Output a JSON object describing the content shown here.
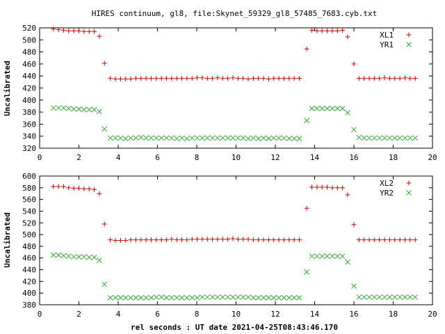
{
  "title": "HIRES continuum, gl8, file:Skynet_59329_gl8_57485_7683.cyb.txt",
  "xlabel": "rel seconds : UT date 2021-04-25T08:43:46.170",
  "colors": {
    "xl": "#cc0000",
    "yr": "#33aa33",
    "frame": "#000000"
  },
  "chart_data": [
    {
      "type": "scatter",
      "ylabel": "Uncalibrated",
      "xlim": [
        0,
        20
      ],
      "ylim": [
        320,
        520
      ],
      "xticks": [
        0,
        2,
        4,
        6,
        8,
        10,
        12,
        14,
        16,
        18,
        20
      ],
      "yticks": [
        320,
        340,
        360,
        380,
        400,
        420,
        440,
        460,
        480,
        500,
        520
      ],
      "grid": false,
      "legend_position": "top-right",
      "x": [
        0.7,
        0.96,
        1.22,
        1.48,
        1.74,
        2.0,
        2.26,
        2.52,
        2.78,
        3.04,
        3.3,
        3.6,
        3.86,
        4.12,
        4.38,
        4.64,
        4.9,
        5.16,
        5.42,
        5.68,
        5.94,
        6.2,
        6.46,
        6.72,
        6.98,
        7.24,
        7.5,
        7.76,
        8.02,
        8.28,
        8.54,
        8.8,
        9.06,
        9.32,
        9.58,
        9.84,
        10.1,
        10.36,
        10.62,
        10.88,
        11.14,
        11.4,
        11.66,
        11.92,
        12.18,
        12.44,
        12.7,
        12.96,
        13.22,
        13.6,
        13.86,
        14.12,
        14.38,
        14.64,
        14.9,
        15.16,
        15.42,
        15.68,
        16.0,
        16.26,
        16.52,
        16.78,
        17.04,
        17.3,
        17.56,
        17.82,
        18.08,
        18.34,
        18.6,
        18.86,
        19.12
      ],
      "series": [
        {
          "name": "XL1",
          "marker": "plus",
          "color": "#cc0000",
          "values": [
            518,
            517,
            516,
            515,
            515,
            515,
            514,
            514,
            514,
            506,
            461,
            436,
            435,
            435,
            435,
            435,
            436,
            436,
            436,
            436,
            436,
            436,
            436,
            436,
            436,
            436,
            436,
            436,
            437,
            437,
            436,
            436,
            437,
            436,
            436,
            437,
            436,
            436,
            435,
            436,
            436,
            436,
            435,
            436,
            436,
            436,
            436,
            436,
            436,
            485,
            516,
            515,
            515,
            515,
            515,
            515,
            516,
            505,
            460,
            436,
            436,
            436,
            436,
            436,
            437,
            436,
            436,
            436,
            437,
            436,
            436
          ]
        },
        {
          "name": "YR1",
          "marker": "cross",
          "color": "#33aa33",
          "values": [
            387,
            387,
            387,
            386,
            385,
            385,
            384,
            384,
            384,
            381,
            352,
            337,
            337,
            337,
            336,
            337,
            337,
            338,
            337,
            337,
            337,
            337,
            337,
            337,
            336,
            337,
            336,
            337,
            337,
            337,
            337,
            337,
            337,
            337,
            337,
            337,
            337,
            337,
            336,
            337,
            336,
            337,
            336,
            337,
            337,
            337,
            336,
            336,
            336,
            366,
            386,
            386,
            386,
            386,
            386,
            386,
            386,
            379,
            351,
            338,
            337,
            337,
            337,
            337,
            337,
            337,
            337,
            337,
            337,
            337,
            337
          ]
        }
      ]
    },
    {
      "type": "scatter",
      "ylabel": "Uncalibrated",
      "xlim": [
        0,
        20
      ],
      "ylim": [
        380,
        600
      ],
      "xticks": [
        0,
        2,
        4,
        6,
        8,
        10,
        12,
        14,
        16,
        18,
        20
      ],
      "yticks": [
        380,
        400,
        420,
        440,
        460,
        480,
        500,
        520,
        540,
        560,
        580,
        600
      ],
      "grid": false,
      "legend_position": "top-right",
      "x": [
        0.7,
        0.96,
        1.22,
        1.48,
        1.74,
        2.0,
        2.26,
        2.52,
        2.78,
        3.04,
        3.3,
        3.6,
        3.86,
        4.12,
        4.38,
        4.64,
        4.9,
        5.16,
        5.42,
        5.68,
        5.94,
        6.2,
        6.46,
        6.72,
        6.98,
        7.24,
        7.5,
        7.76,
        8.02,
        8.28,
        8.54,
        8.8,
        9.06,
        9.32,
        9.58,
        9.84,
        10.1,
        10.36,
        10.62,
        10.88,
        11.14,
        11.4,
        11.66,
        11.92,
        12.18,
        12.44,
        12.7,
        12.96,
        13.22,
        13.6,
        13.86,
        14.12,
        14.38,
        14.64,
        14.9,
        15.16,
        15.42,
        15.68,
        16.0,
        16.26,
        16.52,
        16.78,
        17.04,
        17.3,
        17.56,
        17.82,
        18.08,
        18.34,
        18.6,
        18.86,
        19.12
      ],
      "series": [
        {
          "name": "XL2",
          "marker": "plus",
          "color": "#cc0000",
          "values": [
            582,
            582,
            582,
            580,
            579,
            579,
            578,
            578,
            577,
            570,
            518,
            491,
            490,
            490,
            490,
            491,
            491,
            491,
            491,
            491,
            491,
            491,
            491,
            492,
            491,
            491,
            491,
            492,
            492,
            492,
            492,
            492,
            492,
            492,
            492,
            493,
            492,
            492,
            492,
            491,
            491,
            491,
            491,
            491,
            491,
            491,
            491,
            491,
            491,
            545,
            581,
            581,
            581,
            581,
            580,
            580,
            580,
            568,
            517,
            491,
            491,
            491,
            491,
            491,
            491,
            491,
            491,
            491,
            491,
            491,
            491
          ]
        },
        {
          "name": "YR2",
          "marker": "cross",
          "color": "#33aa33",
          "values": [
            465,
            465,
            464,
            463,
            462,
            462,
            462,
            461,
            461,
            456,
            415,
            392,
            392,
            392,
            392,
            392,
            392,
            392,
            392,
            392,
            393,
            393,
            392,
            392,
            392,
            392,
            392,
            392,
            392,
            393,
            393,
            393,
            393,
            393,
            393,
            393,
            393,
            393,
            393,
            392,
            392,
            392,
            392,
            392,
            392,
            392,
            392,
            392,
            392,
            436,
            463,
            463,
            463,
            463,
            463,
            463,
            463,
            453,
            412,
            393,
            393,
            393,
            393,
            393,
            393,
            393,
            393,
            393,
            393,
            393,
            393
          ]
        }
      ]
    }
  ]
}
